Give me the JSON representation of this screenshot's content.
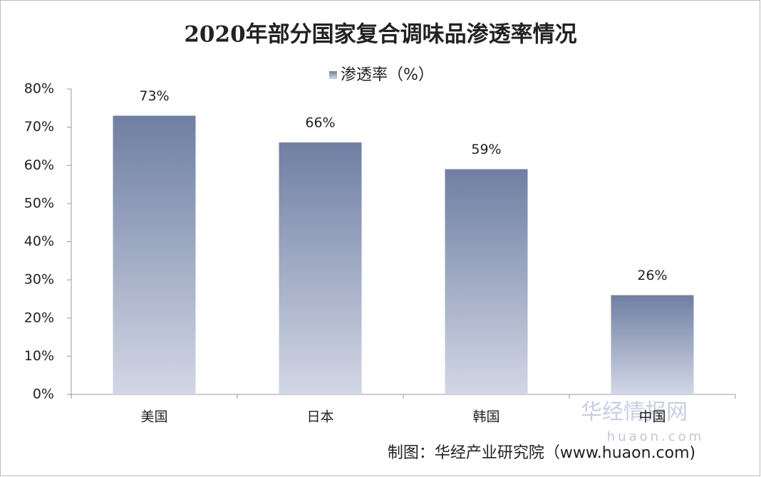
{
  "chart_data": {
    "type": "bar",
    "title": "2020年部分国家复合调味品渗透率情况",
    "categories": [
      "美国",
      "日本",
      "韩国",
      "中国"
    ],
    "series": [
      {
        "name": "渗透率（%）",
        "color": "#6f7fa3",
        "values": [
          73,
          66,
          59,
          26
        ],
        "value_labels": [
          "73%",
          "66%",
          "59%",
          "26%"
        ]
      }
    ],
    "ylim": [
      0,
      80
    ],
    "yticks": [
      {
        "value": 0,
        "label": "0%"
      },
      {
        "value": 10,
        "label": "10%"
      },
      {
        "value": 20,
        "label": "20%"
      },
      {
        "value": 30,
        "label": "30%"
      },
      {
        "value": 40,
        "label": "40%"
      },
      {
        "value": 50,
        "label": "50%"
      },
      {
        "value": 60,
        "label": "60%"
      },
      {
        "value": 70,
        "label": "70%"
      },
      {
        "value": 80,
        "label": "80%"
      }
    ],
    "grid": false,
    "legend": "top",
    "watermark": [
      "华经情报网",
      "huaon.com"
    ],
    "source": "制图：华经产业研究院（www.huaon.com)"
  }
}
